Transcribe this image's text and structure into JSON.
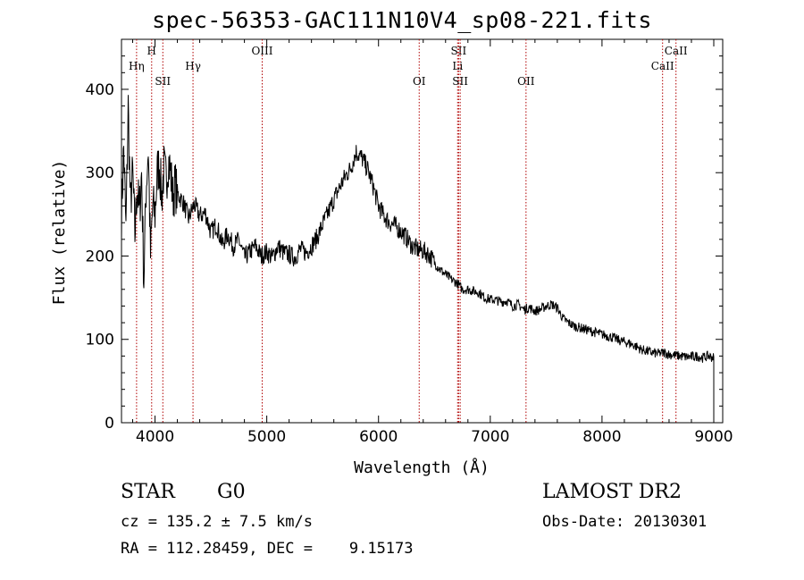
{
  "title": "spec-56353-GAC111N10V4_sp08-221.fits",
  "info": {
    "class": "STAR",
    "subclass": "G0",
    "survey": "LAMOST DR2",
    "velocity": "cz = 135.2 ± 7.5 km/s",
    "obs_date": "Obs-Date: 20130301",
    "coords": "RA = 112.28459, DEC =    9.15173"
  },
  "chart_data": {
    "type": "line",
    "xlabel": "Wavelength (Å)",
    "ylabel": "Flux (relative)",
    "xlim": [
      3700,
      9080
    ],
    "ylim": [
      0,
      460
    ],
    "xticks": [
      4000,
      5000,
      6000,
      7000,
      8000,
      9000
    ],
    "yticks": [
      0,
      100,
      200,
      300,
      400
    ],
    "line_color": "#000000",
    "marker_color": "#b00000",
    "spectral_lines": [
      {
        "label": "Hη",
        "x": 3835,
        "tier": 2
      },
      {
        "label": "H",
        "x": 3970,
        "tier": 1
      },
      {
        "label": "SII",
        "x": 4070,
        "tier": 3
      },
      {
        "label": "Hγ",
        "x": 4340,
        "tier": 2
      },
      {
        "label": "OIII",
        "x": 4959,
        "tier": 1
      },
      {
        "label": "OI",
        "x": 6364,
        "tier": 3
      },
      {
        "label": "SII",
        "x": 6717,
        "tier": 1
      },
      {
        "label": "Li",
        "x": 6708,
        "tier": 2
      },
      {
        "label": "SII",
        "x": 6731,
        "tier": 3
      },
      {
        "label": "OII",
        "x": 7320,
        "tier": 3
      },
      {
        "label": "CaII",
        "x": 8542,
        "tier": 2
      },
      {
        "label": "CaII",
        "x": 8662,
        "tier": 1
      }
    ],
    "series": [
      {
        "x": [
          3700,
          3720,
          3740,
          3760,
          3780,
          3800,
          3820,
          3840,
          3860,
          3880,
          3900,
          3920,
          3940,
          3960,
          3980,
          4000,
          4020,
          4040,
          4060,
          4080,
          4100,
          4120,
          4140,
          4160,
          4180,
          4200,
          4250,
          4300,
          4350,
          4400,
          4450,
          4500,
          4550,
          4600,
          4650,
          4700,
          4750,
          4800,
          4850,
          4900,
          4950,
          5000,
          5050,
          5100,
          5150,
          5200,
          5250,
          5300,
          5350,
          5400,
          5450,
          5500,
          5550,
          5600,
          5650,
          5700,
          5750,
          5800,
          5850,
          5900,
          5950,
          6000,
          6050,
          6100,
          6150,
          6200,
          6250,
          6300,
          6350,
          6400,
          6450,
          6500,
          6550,
          6600,
          6650,
          6700,
          6750,
          6800,
          6850,
          6900,
          6950,
          7000,
          7050,
          7100,
          7150,
          7200,
          7250,
          7300,
          7350,
          7400,
          7450,
          7500,
          7550,
          7600,
          7650,
          7700,
          7750,
          7800,
          7850,
          7900,
          7950,
          8000,
          8050,
          8100,
          8150,
          8200,
          8250,
          8300,
          8350,
          8400,
          8450,
          8500,
          8550,
          8600,
          8650,
          8700,
          8750,
          8800,
          8850,
          8900,
          8950,
          9000
        ],
        "y": [
          250,
          330,
          230,
          380,
          260,
          300,
          225,
          285,
          250,
          300,
          170,
          280,
          330,
          200,
          260,
          250,
          300,
          310,
          270,
          305,
          290,
          315,
          300,
          270,
          285,
          275,
          265,
          245,
          262,
          248,
          252,
          228,
          238,
          214,
          226,
          212,
          219,
          198,
          205,
          212,
          200,
          205,
          198,
          212,
          204,
          202,
          198,
          208,
          204,
          212,
          222,
          238,
          252,
          268,
          282,
          295,
          305,
          325,
          318,
          305,
          285,
          260,
          248,
          240,
          236,
          230,
          222,
          212,
          208,
          206,
          202,
          192,
          184,
          178,
          172,
          168,
          160,
          160,
          158,
          156,
          150,
          148,
          147,
          145,
          146,
          140,
          142,
          136,
          138,
          134,
          136,
          140,
          142,
          138,
          125,
          120,
          116,
          114,
          112,
          110,
          108,
          106,
          104,
          102,
          99,
          97,
          95,
          92,
          88,
          86,
          84,
          83,
          84,
          82,
          81,
          80,
          79,
          79,
          80,
          78,
          80,
          78
        ]
      }
    ]
  }
}
